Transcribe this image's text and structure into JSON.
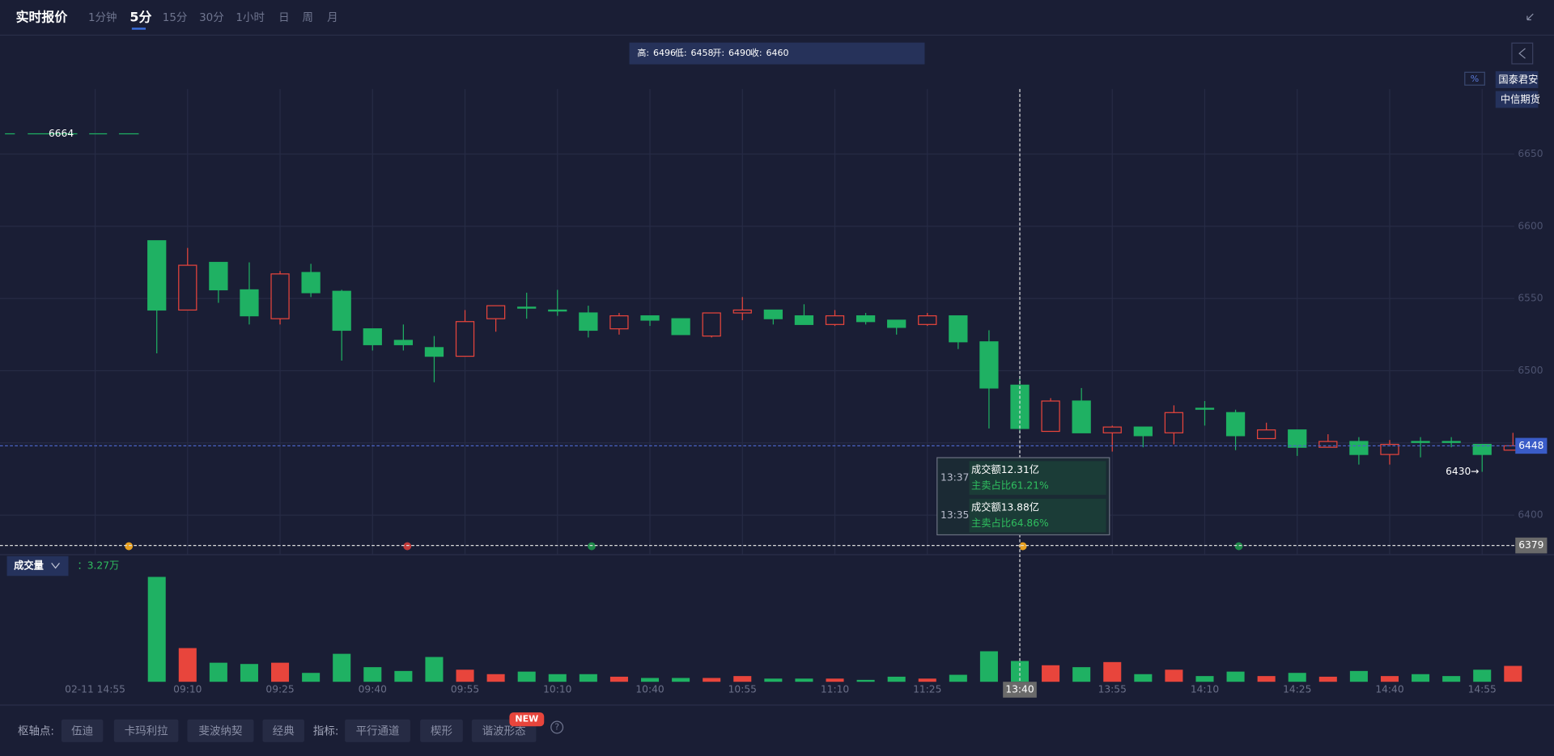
{
  "header": {
    "title": "实时报价",
    "periods": [
      "1分钟",
      "5分",
      "15分",
      "30分",
      "1小时",
      "日",
      "周",
      "月"
    ]
  },
  "info_bar": {
    "labels": [
      "高:",
      "低:",
      "开:",
      "收:"
    ]
  },
  "unit_toggle": "%",
  "brokers": [
    "国泰君安",
    "中信期货"
  ],
  "volume_panel": {
    "label": "成交量",
    "value_label": "：3.27万"
  },
  "tooltip": [
    {
      "time": "13:37",
      "text": "成交额12.31亿",
      "sub": "主卖占比61.21%"
    },
    {
      "time": "13:35",
      "text": "成交额13.88亿",
      "sub": "主卖占比64.86%"
    }
  ],
  "toolbar": {
    "pivot_label": "枢轴点:",
    "pivots": [
      "伍迪",
      "卡玛利拉",
      "斐波纳契",
      "经典"
    ],
    "indicator_label": "指标:",
    "indicators": [
      "平行通道",
      "楔形",
      "谐波形态"
    ],
    "badge": "NEW",
    "help": "?"
  },
  "chart_data": {
    "type": "candlestick",
    "categories": [
      "02-11 14:55",
      null,
      null,
      "09:10",
      null,
      null,
      "09:25",
      null,
      null,
      "09:40",
      null,
      null,
      "09:55",
      null,
      null,
      "10:10",
      null,
      null,
      "10:40",
      null,
      null,
      "10:55",
      null,
      null,
      "11:10",
      null,
      null,
      "11:25",
      null,
      null,
      null,
      null,
      null,
      "13:55",
      null,
      null,
      "14:10",
      null,
      null,
      "14:25",
      null,
      null,
      "14:40",
      null,
      null,
      "14:55",
      null
    ],
    "open": [
      null,
      null,
      6590,
      6542,
      6575,
      6556,
      6536,
      6568,
      6555,
      6529,
      6521,
      6516,
      6510,
      6536,
      6544,
      6542,
      6540,
      6529,
      6538,
      6536,
      6524,
      6540,
      6542,
      6538,
      6532,
      6538,
      6535,
      6532,
      6538,
      6520,
      6490,
      6458,
      6479,
      6457,
      6461,
      6457,
      6474,
      6471,
      6453,
      6459,
      6447,
      6451,
      6442,
      6451,
      6451,
      6449,
      6445
    ],
    "high": [
      null,
      null,
      6590,
      6585,
      6575,
      6575,
      6569,
      6574,
      6556,
      6529,
      6532,
      6524,
      6542,
      6545,
      6554,
      6556,
      6545,
      6540,
      6538,
      6536,
      6540,
      6551,
      6542,
      6546,
      6542,
      6540,
      6535,
      6540,
      6538,
      6528,
      6496,
      6481,
      6488,
      6462,
      6461,
      6476,
      6479,
      6473,
      6464,
      6459,
      6456,
      6454,
      6452,
      6454,
      6454,
      6449,
      6457
    ],
    "low": [
      null,
      null,
      6512,
      6542,
      6547,
      6532,
      6532,
      6551,
      6507,
      6514,
      6514,
      6492,
      6510,
      6527,
      6536,
      6538,
      6523,
      6525,
      6531,
      6525,
      6523,
      6535,
      6532,
      6532,
      6531,
      6532,
      6525,
      6531,
      6515,
      6460,
      6458,
      6458,
      6457,
      6444,
      6447,
      6449,
      6462,
      6445,
      6453,
      6441,
      6447,
      6435,
      6435,
      6440,
      6447,
      6430,
      6445
    ],
    "close": [
      null,
      null,
      6542,
      6573,
      6556,
      6538,
      6567,
      6554,
      6528,
      6518,
      6518,
      6510,
      6534,
      6545,
      6544,
      6542,
      6528,
      6538,
      6535,
      6525,
      6540,
      6542,
      6536,
      6532,
      6538,
      6534,
      6530,
      6538,
      6520,
      6488,
      6460,
      6479,
      6457,
      6461,
      6455,
      6471,
      6474,
      6455,
      6459,
      6447,
      6451,
      6442,
      6449,
      6451,
      6451,
      6442,
      6448
    ],
    "volume": [
      null,
      null,
      16.5,
      5.3,
      3.0,
      2.8,
      3.0,
      1.4,
      4.4,
      2.3,
      1.7,
      3.9,
      1.9,
      1.2,
      1.6,
      1.2,
      1.2,
      0.8,
      0.6,
      0.6,
      0.6,
      0.9,
      0.5,
      0.5,
      0.5,
      0.3,
      0.8,
      0.5,
      1.1,
      4.8,
      3.27,
      2.6,
      2.3,
      3.1,
      1.2,
      1.9,
      0.9,
      1.6,
      0.9,
      1.4,
      0.8,
      1.7,
      0.9,
      1.2,
      0.9,
      1.9,
      2.5
    ],
    "colors": {
      "up": "#e8453c",
      "down": "#1fb163"
    },
    "ylim": [
      6373,
      6695
    ],
    "yticks": [
      6400,
      6450,
      6500,
      6550,
      6600,
      6650
    ],
    "grid": true,
    "selected": 30,
    "crosshair_label": "13:40",
    "cursor_price": 6379,
    "ref_line": 6664,
    "min_label": "6430→"
  }
}
